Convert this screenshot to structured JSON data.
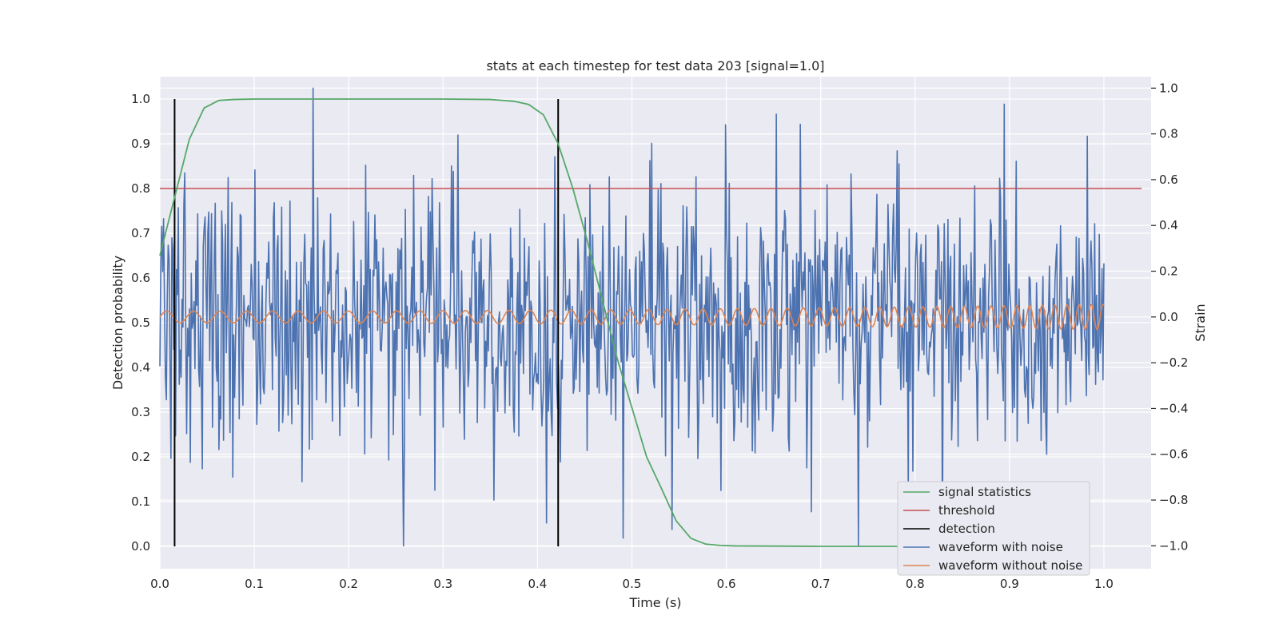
{
  "chart_data": {
    "type": "line",
    "title": "stats at each timestep for test data 203 [signal=1.0]",
    "xlabel": "Time (s)",
    "ylabel_left": "Detection probability",
    "ylabel_right": "Strain",
    "xlim": [
      0.0,
      1.05
    ],
    "ylim_left": [
      -0.05,
      1.05
    ],
    "ylim_right": [
      -1.1,
      1.05
    ],
    "grid": true,
    "legend_placement": "lower right",
    "x_ticks": [
      "0.0",
      "0.1",
      "0.2",
      "0.3",
      "0.4",
      "0.5",
      "0.6",
      "0.7",
      "0.8",
      "0.9",
      "1.0"
    ],
    "y_ticks_left": [
      "0.0",
      "0.1",
      "0.2",
      "0.3",
      "0.4",
      "0.5",
      "0.6",
      "0.7",
      "0.8",
      "0.9",
      "1.0"
    ],
    "y_ticks_right": [
      "−1.0",
      "−0.8",
      "−0.6",
      "−0.4",
      "−0.2",
      "0.0",
      "0.2",
      "0.4",
      "0.6",
      "0.8",
      "1.0"
    ],
    "colors": {
      "signal_statistics": "#55a868",
      "threshold": "#c44e52",
      "detection": "#000000",
      "waveform_with_noise": "#4c72b0",
      "waveform_without_noise": "#dd8452",
      "plot_background": "#eaeaf2",
      "grid": "#ffffff"
    },
    "series": [
      {
        "name": "signal statistics",
        "axis": "left",
        "x": [
          0.0,
          0.0156,
          0.0312,
          0.0469,
          0.0625,
          0.0781,
          0.1,
          0.2,
          0.3,
          0.35,
          0.375,
          0.3906,
          0.4062,
          0.4219,
          0.4375,
          0.4531,
          0.4688,
          0.4844,
          0.5,
          0.5156,
          0.5312,
          0.5469,
          0.5625,
          0.5781,
          0.5938,
          0.6094,
          0.7,
          0.8,
          0.9,
          0.984
        ],
        "y": [
          0.65,
          0.78,
          0.91,
          0.98,
          0.997,
          0.999,
          1.0,
          1.0,
          1.0,
          0.999,
          0.995,
          0.988,
          0.965,
          0.9,
          0.8,
          0.68,
          0.55,
          0.42,
          0.31,
          0.2,
          0.13,
          0.057,
          0.018,
          0.005,
          0.002,
          0.001,
          0.0,
          0.0,
          0.0,
          0.0
        ]
      },
      {
        "name": "threshold",
        "axis": "left",
        "x": [
          0.0,
          1.04
        ],
        "y": [
          0.8,
          0.8
        ]
      },
      {
        "name": "detection",
        "axis": "left",
        "x_lines": [
          0.0156,
          0.4219
        ],
        "y_range": [
          0.0,
          1.0
        ]
      },
      {
        "name": "waveform with noise",
        "axis": "right",
        "x_range": [
          0.0,
          1.0
        ],
        "samples": 1024,
        "mean": 0.0,
        "std": 0.28,
        "y_min": -1.0,
        "y_max": 1.0,
        "highlight_peaks": [
          {
            "x": 0.162,
            "y": 1.0
          },
          {
            "x": 0.41,
            "y": -0.9
          },
          {
            "x": 0.74,
            "y": -1.0
          },
          {
            "x": 0.354,
            "y": -0.8
          },
          {
            "x": 0.599,
            "y": 0.84
          },
          {
            "x": 0.982,
            "y": 0.79
          }
        ]
      },
      {
        "name": "waveform without noise",
        "axis": "right",
        "x_range": [
          0.0,
          1.0
        ],
        "description_amplitude_start": 0.025,
        "description_amplitude_end": 0.055,
        "freq_start_hz": 35,
        "freq_end_hz": 80
      }
    ]
  },
  "legend": [
    {
      "label": "signal statistics",
      "color": "#55a868"
    },
    {
      "label": "threshold",
      "color": "#c44e52"
    },
    {
      "label": "detection",
      "color": "#000000"
    },
    {
      "label": "waveform with noise",
      "color": "#4c72b0"
    },
    {
      "label": "waveform without noise",
      "color": "#dd8452"
    }
  ]
}
